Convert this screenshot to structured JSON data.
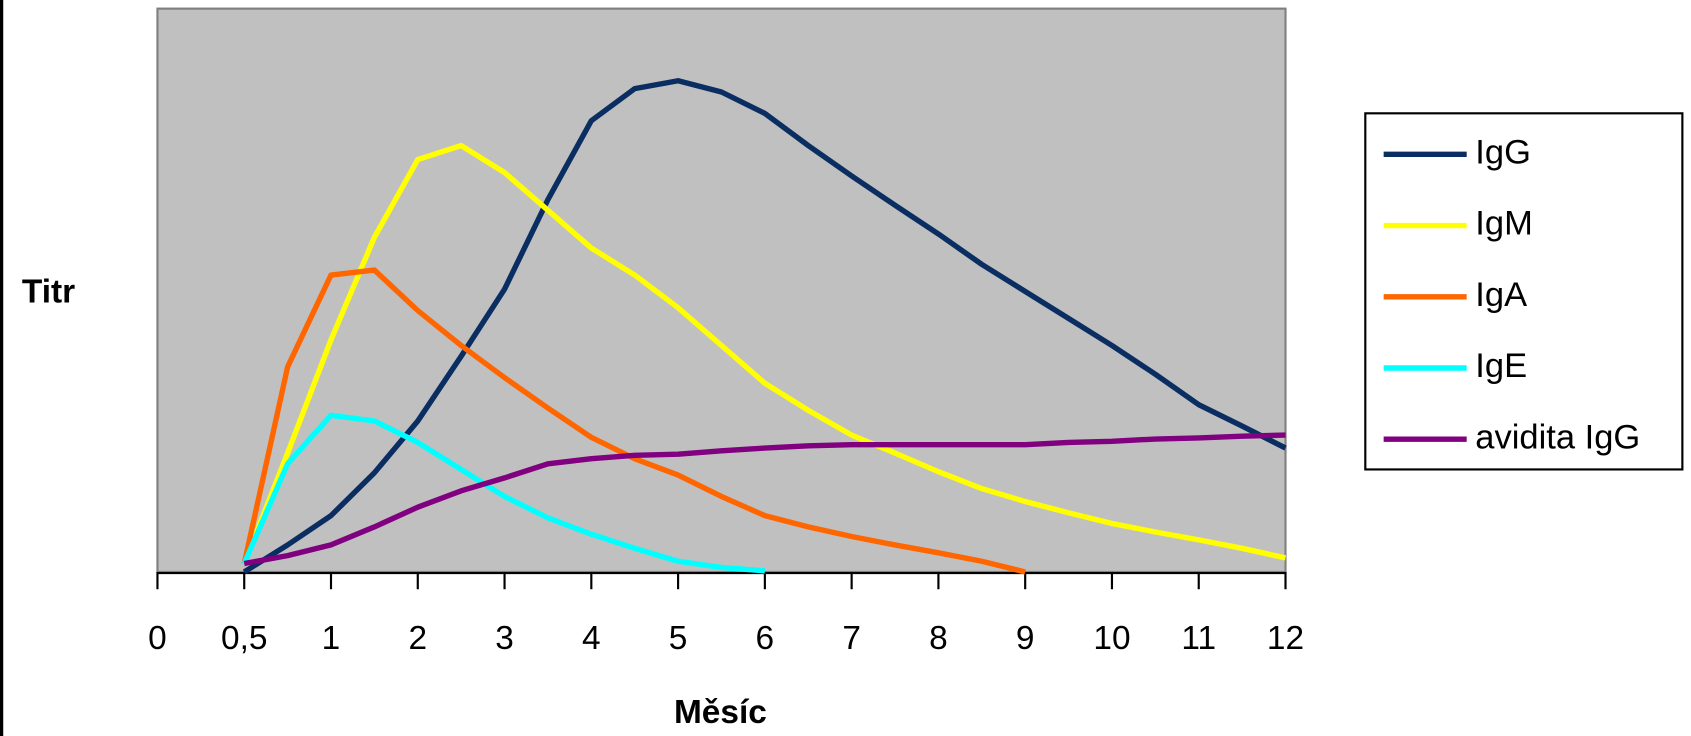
{
  "chart_data": {
    "type": "line",
    "ylabel": "Titr",
    "xlabel": "Měsíc",
    "categories": [
      "0",
      null,
      "0,5",
      null,
      "1",
      null,
      "2",
      null,
      "3",
      null,
      "4",
      null,
      "5",
      null,
      "6",
      null,
      "7",
      null,
      "8",
      null,
      "9",
      null,
      "10",
      null,
      "11",
      null,
      "12"
    ],
    "ylim": [
      0,
      100
    ],
    "series": [
      {
        "name": "IgG",
        "color": "#0a2d62",
        "values": [
          null,
          null,
          0,
          4.8,
          10.0,
          17.6,
          26.8,
          38.3,
          50.2,
          66.1,
          80.1,
          85.8,
          87.2,
          85.2,
          81.4,
          75.7,
          70.3,
          65.1,
          60.0,
          54.6,
          49.8,
          45.0,
          40.2,
          35.1,
          29.7,
          25.9,
          22.0
        ]
      },
      {
        "name": "IgM",
        "color": "#ffff00",
        "values": [
          null,
          null,
          1.5,
          21.1,
          41.2,
          59.4,
          73.2,
          75.7,
          70.9,
          64.2,
          57.5,
          52.7,
          46.9,
          40.2,
          33.5,
          28.7,
          24.3,
          21.1,
          17.8,
          14.8,
          12.5,
          10.5,
          8.6,
          7.1,
          5.7,
          4.2,
          2.5
        ]
      },
      {
        "name": "IgA",
        "color": "#ff6600",
        "values": [
          null,
          null,
          1.5,
          36.4,
          52.7,
          53.6,
          46.4,
          40.2,
          34.5,
          29.1,
          23.9,
          20.1,
          17.2,
          13.4,
          10.0,
          8.0,
          6.3,
          4.8,
          3.4,
          1.9,
          0,
          null,
          null,
          null,
          null,
          null,
          null
        ]
      },
      {
        "name": "IgE",
        "color": "#00ffff",
        "values": [
          null,
          null,
          1.5,
          19.2,
          27.8,
          26.8,
          23.0,
          18.2,
          13.4,
          9.6,
          6.7,
          4.2,
          1.9,
          0.8,
          0.2,
          null,
          null,
          null,
          null,
          null,
          null,
          null,
          null,
          null,
          null,
          null,
          null
        ]
      },
      {
        "name": "avidita IgG",
        "color": "#800080",
        "values": [
          null,
          null,
          1.5,
          2.9,
          4.8,
          8.0,
          11.5,
          14.4,
          16.7,
          19.2,
          20.1,
          20.7,
          20.9,
          21.5,
          22.0,
          22.4,
          22.6,
          22.6,
          22.6,
          22.6,
          22.6,
          23.0,
          23.2,
          23.6,
          23.8,
          24.1,
          24.3
        ]
      }
    ]
  }
}
